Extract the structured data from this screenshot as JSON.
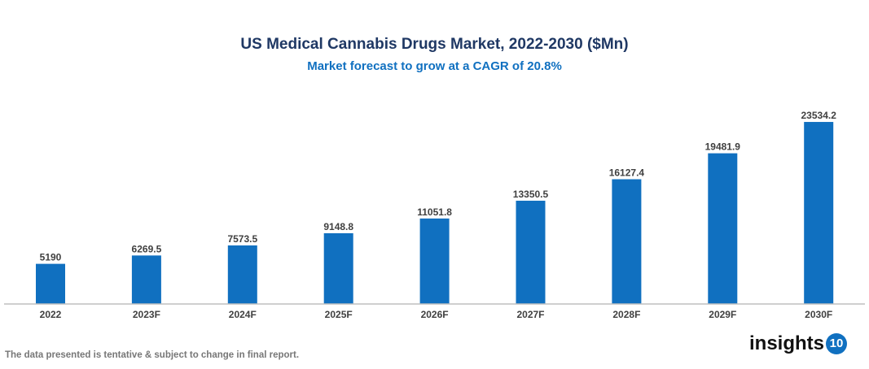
{
  "chart_data": {
    "type": "bar",
    "title": "US Medical Cannabis Drugs Market, 2022-2030 ($Mn)",
    "subtitle": "Market forecast to grow at a CAGR of 20.8%",
    "categories": [
      "2022",
      "2023F",
      "2024F",
      "2025F",
      "2026F",
      "2027F",
      "2028F",
      "2029F",
      "2030F"
    ],
    "values": [
      5190,
      6269.5,
      7573.5,
      9148.8,
      11051.8,
      13350.5,
      16127.4,
      19481.9,
      23534.2
    ],
    "value_labels": [
      "5190",
      "6269.5",
      "7573.5",
      "9148.8",
      "11051.8",
      "13350.5",
      "16127.4",
      "19481.9",
      "23534.2"
    ],
    "xlabel": "",
    "ylabel": "",
    "ylim": [
      0,
      24000
    ],
    "grid": false,
    "bar_color": "#1070c0"
  },
  "footer": {
    "note": "The data presented is tentative & subject to change in final report.",
    "logo_text": "insights",
    "logo_badge": "10"
  }
}
